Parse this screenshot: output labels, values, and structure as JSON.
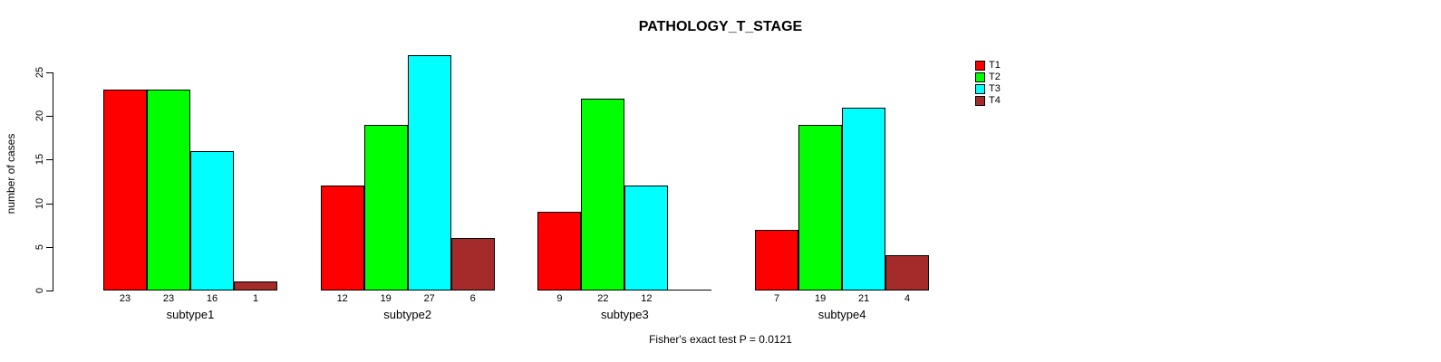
{
  "page": {
    "background": "#FFFFFF"
  },
  "chart_data": {
    "type": "bar",
    "title": "PATHOLOGY_T_STAGE",
    "xlabel": "",
    "ylabel": "number of cases",
    "ylim": [
      0,
      25
    ],
    "yticks": [
      0,
      5,
      10,
      15,
      20,
      25
    ],
    "grid": false,
    "legend_position": "top-right",
    "categories": [
      "subtype1",
      "subtype2",
      "subtype3",
      "subtype4"
    ],
    "series": [
      {
        "name": "T1",
        "color": "#FF0000",
        "values": [
          23,
          12,
          9,
          7
        ]
      },
      {
        "name": "T2",
        "color": "#00FF00",
        "values": [
          23,
          19,
          22,
          19
        ]
      },
      {
        "name": "T3",
        "color": "#00FFFF",
        "values": [
          16,
          27,
          12,
          21
        ]
      },
      {
        "name": "T4",
        "color": "#A52A2A",
        "values": [
          1,
          6,
          0,
          4
        ]
      }
    ],
    "value_labels": {
      "show": true,
      "omit_zero": true
    },
    "annotation": "Fisher's exact test P = 0.0121"
  }
}
